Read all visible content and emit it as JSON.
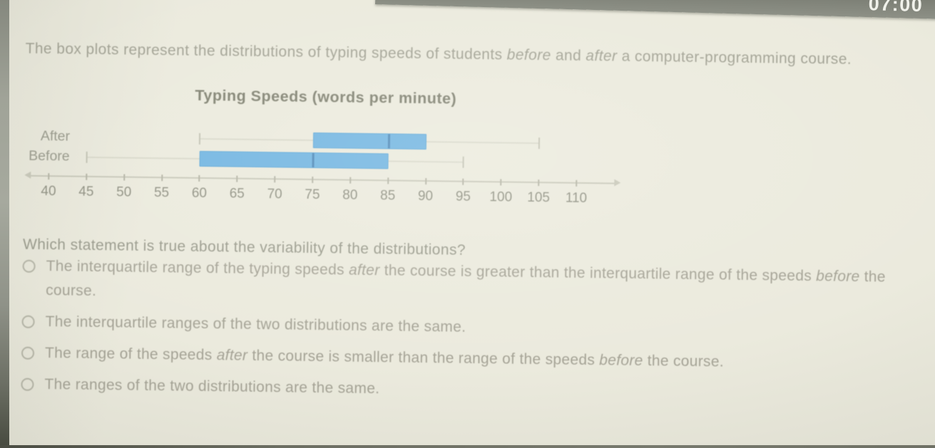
{
  "timer": {
    "time": "07:00"
  },
  "intro": {
    "segments": [
      {
        "text": "The box plots represent the distributions of typing speeds of students "
      },
      {
        "text": "before",
        "italic": true
      },
      {
        "text": " and "
      },
      {
        "text": "after",
        "italic": true
      },
      {
        "text": " a computer-programming course."
      }
    ]
  },
  "question": "Which statement is true about the variability of the distributions?",
  "options": [
    {
      "segments": [
        {
          "text": "The interquartile range of the typing speeds "
        },
        {
          "text": "after",
          "italic": true
        },
        {
          "text": " the course is greater than the interquartile range of the speeds "
        },
        {
          "text": "before",
          "italic": true
        },
        {
          "text": " the course."
        }
      ]
    },
    {
      "segments": [
        {
          "text": "The interquartile ranges of the two distributions are the same."
        }
      ]
    },
    {
      "segments": [
        {
          "text": "The range of the speeds "
        },
        {
          "text": "after",
          "italic": true
        },
        {
          "text": " the course is smaller than the range of the speeds "
        },
        {
          "text": "before",
          "italic": true
        },
        {
          "text": " the course."
        }
      ]
    },
    {
      "segments": [
        {
          "text": "The ranges of the two distributions are the same."
        }
      ]
    }
  ],
  "chart_data": {
    "type": "boxplot",
    "title": "Typing Speeds (words per minute)",
    "xlabel": "",
    "axis": {
      "min": 40,
      "max": 110,
      "step": 5
    },
    "tick_labels": [
      "40",
      "45",
      "50",
      "55",
      "60",
      "65",
      "70",
      "75",
      "80",
      "85",
      "90",
      "95",
      "100",
      "105",
      "110"
    ],
    "series": [
      {
        "name": "After",
        "min": 60,
        "q1": 75,
        "median": 85,
        "q3": 90,
        "max": 105
      },
      {
        "name": "Before",
        "min": 45,
        "q1": 60,
        "median": 75,
        "q3": 85,
        "max": 95
      }
    ],
    "colors": {
      "box_fill": "#70b4e1",
      "box_border": "#5fa8d7",
      "median": "#4d88b8",
      "whisker": "#d9d9cb",
      "whisker_cap": "#c2c2b3",
      "axis": "#c8c8b9",
      "tick": "#b3b3a4"
    }
  }
}
